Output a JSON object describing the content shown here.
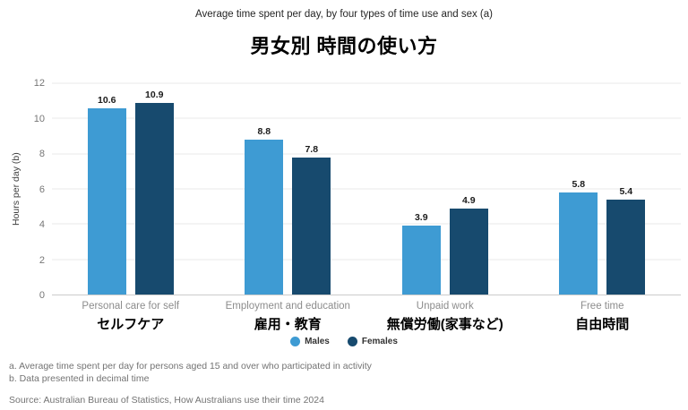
{
  "header": {
    "subtitle": "Average time spent per day, by four types of time use and sex (a)",
    "title": "男女別 時間の使い方"
  },
  "chart_data": {
    "type": "bar",
    "title": "男女別 時間の使い方",
    "subtitle": "Average time spent per day, by four types of time use and sex (a)",
    "xlabel": "",
    "ylabel": "Hours per day (b)",
    "ylim": [
      0,
      12
    ],
    "ytick_step": 2,
    "grid": true,
    "legend_position": "bottom",
    "categories_en": [
      "Personal care for self",
      "Employment and education",
      "Unpaid work",
      "Free time"
    ],
    "categories_ja": [
      "セルフケア",
      "雇用・教育",
      "無償労働(家事など)",
      "自由時間"
    ],
    "series": [
      {
        "name": "Males",
        "color": "#3E9BD3",
        "values": [
          10.6,
          8.8,
          3.9,
          5.8
        ]
      },
      {
        "name": "Females",
        "color": "#174A6E",
        "values": [
          10.9,
          7.8,
          4.9,
          5.4
        ]
      }
    ]
  },
  "footnotes": {
    "a": "a. Average time spent per day for persons aged 15 and over who participated in activity",
    "b": "b. Data presented in decimal time",
    "source": "Source: Australian Bureau of Statistics, How Australians use their time 2024"
  }
}
